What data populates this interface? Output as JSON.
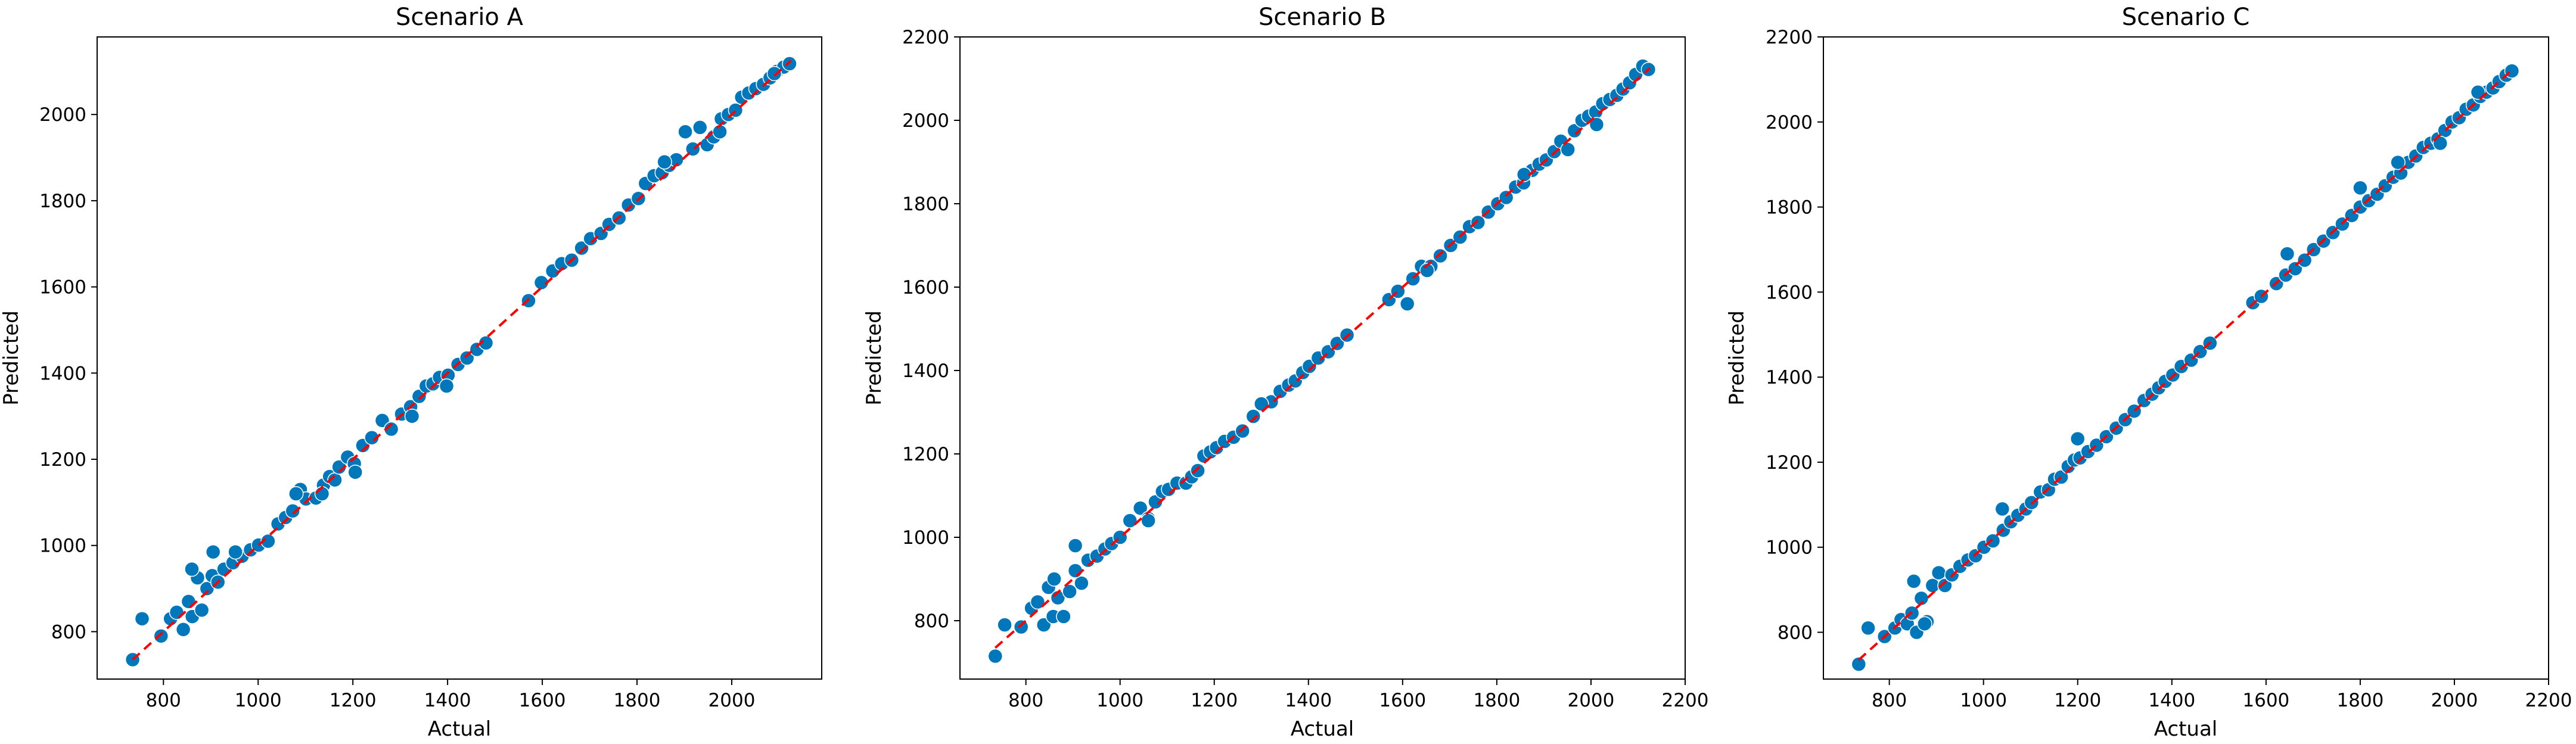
{
  "figure": {
    "marker_color": "#0077bb",
    "marker_edge_color": "#ffffff",
    "reference_line_color": "#ff0000"
  },
  "chart_data": [
    {
      "type": "scatter",
      "title": "Scenario A",
      "xlabel": "Actual",
      "ylabel": "Predicted",
      "xlim": [
        660,
        2190
      ],
      "ylim": [
        690,
        2180
      ],
      "xticks": [
        800,
        1000,
        1200,
        1400,
        1600,
        1800,
        2000
      ],
      "yticks": [
        800,
        1000,
        1200,
        1400,
        1600,
        1800,
        2000
      ],
      "grid": false,
      "reference_line": {
        "x": [
          735,
          2125
        ],
        "y": [
          735,
          2125
        ],
        "style": "dashed"
      },
      "x": [
        735,
        755,
        795,
        815,
        828,
        842,
        853,
        861,
        872,
        881,
        892,
        903,
        915,
        928,
        947,
        966,
        984,
        1001,
        1021,
        1042,
        1058,
        1073,
        1089,
        1101,
        1122,
        1138,
        1151,
        1162,
        1171,
        1189,
        1203,
        1221,
        1240,
        1262,
        1281,
        1303,
        1322,
        1340,
        1355,
        1369,
        1383,
        1401,
        1422,
        1441,
        1462,
        1481,
        1571,
        1598,
        1622,
        1641,
        1662,
        1683,
        1702,
        1724,
        1741,
        1762,
        1782,
        1803,
        1818,
        1836,
        1853,
        1868,
        1883,
        1902,
        1918,
        1933,
        1948,
        1962,
        1978,
        1993,
        2008,
        2021,
        2036,
        2051,
        2067,
        2081,
        2095,
        2110,
        2122,
        860,
        905,
        952,
        1080,
        1135,
        1205,
        1325,
        1398,
        1858,
        1975,
        2090
      ],
      "y": [
        735,
        830,
        790,
        830,
        845,
        805,
        870,
        835,
        925,
        850,
        900,
        930,
        915,
        945,
        960,
        975,
        990,
        1001,
        1010,
        1050,
        1065,
        1080,
        1130,
        1108,
        1110,
        1140,
        1160,
        1152,
        1182,
        1205,
        1190,
        1232,
        1250,
        1290,
        1270,
        1305,
        1322,
        1346,
        1370,
        1375,
        1390,
        1395,
        1420,
        1435,
        1455,
        1470,
        1568,
        1610,
        1637,
        1654,
        1662,
        1690,
        1712,
        1724,
        1745,
        1760,
        1790,
        1805,
        1840,
        1858,
        1865,
        1882,
        1895,
        1960,
        1920,
        1970,
        1930,
        1948,
        1990,
        2000,
        2010,
        2040,
        2050,
        2060,
        2070,
        2085,
        2100,
        2110,
        2118,
        945,
        985,
        985,
        1120,
        1120,
        1170,
        1300,
        1370,
        1890,
        1960,
        2095
      ]
    },
    {
      "type": "scatter",
      "title": "Scenario B",
      "xlabel": "Actual",
      "ylabel": "Predicted",
      "xlim": [
        660,
        2200
      ],
      "ylim": [
        660,
        2200
      ],
      "xticks": [
        800,
        1000,
        1200,
        1400,
        1600,
        1800,
        2000,
        2200
      ],
      "yticks": [
        800,
        1000,
        1200,
        1400,
        1600,
        1800,
        2000,
        2200
      ],
      "grid": false,
      "reference_line": {
        "x": [
          735,
          2125
        ],
        "y": [
          735,
          2125
        ],
        "style": "dashed"
      },
      "x": [
        735,
        755,
        790,
        812,
        825,
        838,
        848,
        858,
        868,
        880,
        893,
        905,
        918,
        932,
        951,
        968,
        982,
        1000,
        1021,
        1043,
        1060,
        1075,
        1090,
        1103,
        1121,
        1140,
        1152,
        1165,
        1178,
        1192,
        1205,
        1222,
        1241,
        1260,
        1283,
        1302,
        1321,
        1340,
        1358,
        1372,
        1388,
        1402,
        1421,
        1442,
        1461,
        1482,
        1571,
        1590,
        1622,
        1640,
        1660,
        1680,
        1702,
        1722,
        1742,
        1760,
        1782,
        1802,
        1820,
        1840,
        1857,
        1875,
        1890,
        1905,
        1922,
        1936,
        1951,
        1965,
        1981,
        1995,
        2010,
        2025,
        2040,
        2055,
        2068,
        2082,
        2095,
        2110,
        2122,
        860,
        905,
        1060,
        1300,
        1610,
        1652,
        1858,
        2012
      ],
      "y": [
        715,
        790,
        785,
        830,
        845,
        790,
        880,
        810,
        855,
        810,
        870,
        980,
        890,
        945,
        955,
        972,
        985,
        1000,
        1040,
        1070,
        1045,
        1085,
        1110,
        1115,
        1130,
        1130,
        1145,
        1160,
        1195,
        1205,
        1215,
        1230,
        1240,
        1255,
        1290,
        1320,
        1325,
        1350,
        1365,
        1375,
        1395,
        1410,
        1430,
        1445,
        1465,
        1485,
        1570,
        1590,
        1620,
        1650,
        1650,
        1675,
        1700,
        1720,
        1745,
        1755,
        1780,
        1800,
        1815,
        1840,
        1850,
        1880,
        1895,
        1905,
        1925,
        1950,
        1930,
        1975,
        2000,
        2010,
        2020,
        2040,
        2050,
        2060,
        2075,
        2090,
        2110,
        2130,
        2122,
        900,
        920,
        1040,
        1320,
        1560,
        1640,
        1870,
        1990
      ]
    },
    {
      "type": "scatter",
      "title": "Scenario C",
      "xlabel": "Actual",
      "ylabel": "Predicted",
      "xlim": [
        660,
        2200
      ],
      "ylim": [
        690,
        2200
      ],
      "xticks": [
        800,
        1000,
        1200,
        1400,
        1600,
        1800,
        2000,
        2200
      ],
      "yticks": [
        800,
        1000,
        1200,
        1400,
        1600,
        1800,
        2000,
        2200
      ],
      "grid": false,
      "reference_line": {
        "x": [
          735,
          2125
        ],
        "y": [
          735,
          2125
        ],
        "style": "dashed"
      },
      "x": [
        735,
        755,
        790,
        812,
        825,
        838,
        848,
        858,
        868,
        880,
        892,
        905,
        918,
        933,
        950,
        967,
        983,
        1001,
        1020,
        1042,
        1058,
        1073,
        1090,
        1102,
        1121,
        1138,
        1151,
        1165,
        1180,
        1193,
        1205,
        1222,
        1240,
        1261,
        1282,
        1301,
        1320,
        1341,
        1358,
        1372,
        1386,
        1402,
        1420,
        1441,
        1460,
        1481,
        1572,
        1590,
        1622,
        1642,
        1662,
        1682,
        1701,
        1722,
        1742,
        1762,
        1782,
        1800,
        1818,
        1836,
        1853,
        1870,
        1886,
        1902,
        1918,
        1934,
        1950,
        1965,
        1980,
        1995,
        2010,
        2025,
        2040,
        2055,
        2068,
        2082,
        2095,
        2110,
        2122,
        852,
        875,
        1040,
        1200,
        1645,
        1800,
        1880,
        1970,
        2050
      ],
      "y": [
        725,
        810,
        790,
        810,
        830,
        820,
        845,
        800,
        880,
        825,
        910,
        940,
        910,
        935,
        955,
        970,
        980,
        1000,
        1015,
        1040,
        1060,
        1075,
        1090,
        1105,
        1130,
        1135,
        1160,
        1165,
        1190,
        1205,
        1210,
        1225,
        1240,
        1260,
        1280,
        1300,
        1320,
        1345,
        1360,
        1375,
        1390,
        1405,
        1425,
        1440,
        1460,
        1480,
        1575,
        1590,
        1620,
        1640,
        1655,
        1675,
        1700,
        1720,
        1740,
        1760,
        1780,
        1800,
        1815,
        1830,
        1850,
        1870,
        1880,
        1905,
        1920,
        1940,
        1950,
        1960,
        1980,
        2000,
        2010,
        2030,
        2040,
        2060,
        2070,
        2080,
        2095,
        2110,
        2120,
        920,
        820,
        1090,
        1255,
        1690,
        1845,
        1905,
        1950,
        2070
      ]
    }
  ]
}
